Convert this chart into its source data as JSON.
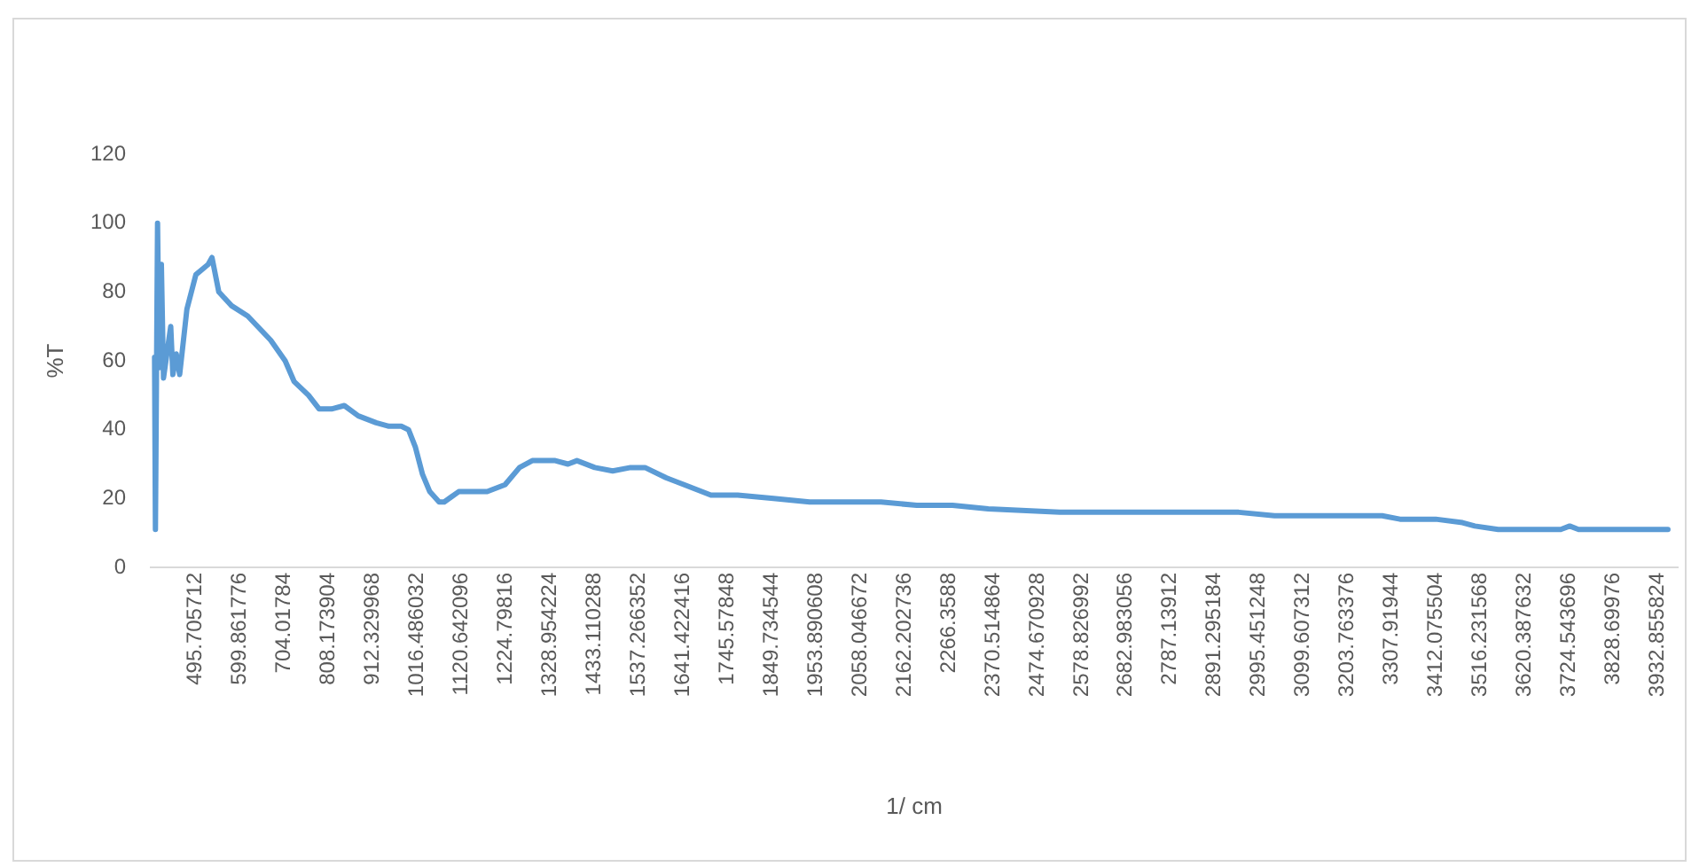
{
  "chart_data": {
    "type": "line",
    "xlabel": "1/ cm",
    "ylabel": "%T",
    "marker": "none",
    "x": [
      399,
      401,
      406,
      410,
      415,
      420,
      437,
      442,
      450,
      458,
      475,
      496,
      525,
      534,
      550,
      580,
      618,
      672,
      706,
      727,
      761,
      786,
      815,
      845,
      878,
      920,
      950,
      979,
      996,
      1012,
      1029,
      1046,
      1068,
      1080,
      1114,
      1181,
      1223,
      1257,
      1287,
      1341,
      1371,
      1392,
      1434,
      1476,
      1518,
      1552,
      1602,
      1644,
      1707,
      1770,
      1854,
      1939,
      2023,
      2107,
      2191,
      2275,
      2359,
      2527,
      2738,
      2948,
      3032,
      3200,
      3285,
      3327,
      3411,
      3474,
      3503,
      3558,
      3705,
      3726,
      3747,
      3957
    ],
    "series": [
      {
        "color": "#5b9bd5",
        "values": [
          61,
          11,
          100,
          58,
          88,
          55,
          70,
          56,
          62,
          56,
          75,
          85,
          88,
          90,
          80,
          76,
          73,
          66,
          60,
          54,
          50,
          46,
          46,
          47,
          44,
          42,
          41,
          41,
          40,
          35,
          27,
          22,
          19,
          19,
          22,
          22,
          24,
          29,
          31,
          31,
          30,
          31,
          29,
          28,
          29,
          29,
          26,
          24,
          21,
          21,
          20,
          19,
          19,
          19,
          18,
          18,
          17,
          16,
          16,
          16,
          15,
          15,
          15,
          14,
          14,
          13,
          12,
          11,
          11,
          12,
          11,
          11
        ]
      }
    ],
    "xlim": [
      390,
      3980
    ],
    "xticks": [
      495.705712,
      599.861776,
      704.01784,
      808.173904,
      912.329968,
      1016.486032,
      1120.642096,
      1224.79816,
      1328.954224,
      1433.110288,
      1537.266352,
      1641.422416,
      1745.57848,
      1849.734544,
      1953.890608,
      2058.046672,
      2162.202736,
      2266.3588,
      2370.514864,
      2474.670928,
      2578.826992,
      2682.983056,
      2787.13912,
      2891.295184,
      2995.451248,
      3099.607312,
      3203.763376,
      3307.91944,
      3412.075504,
      3516.231568,
      3620.387632,
      3724.543696,
      3828.69976,
      3932.855824
    ],
    "ylim": [
      0,
      120
    ],
    "yticks": [
      0,
      20,
      40,
      60,
      80,
      100,
      120
    ]
  }
}
